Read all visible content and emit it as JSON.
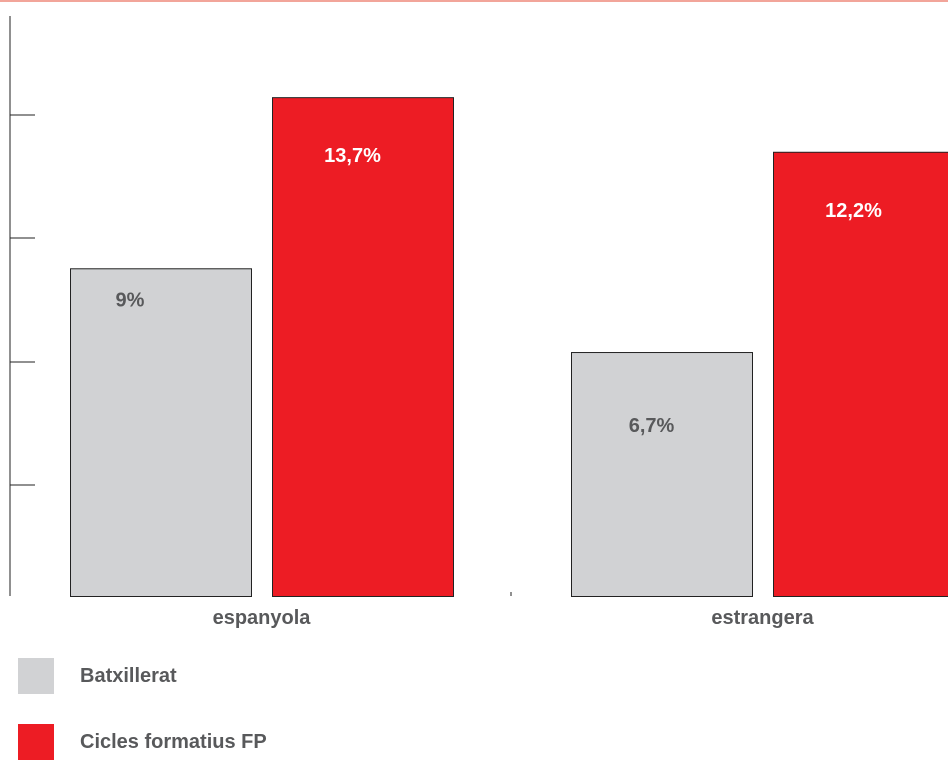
{
  "chart_data": {
    "type": "bar",
    "categories": [
      "espanyola",
      "estrangera"
    ],
    "series": [
      {
        "name": "Batxillerat",
        "values": [
          9,
          6.7
        ],
        "labels": [
          "9%",
          "6,7%"
        ],
        "color": "#d1d2d4",
        "label_color": "#58595b"
      },
      {
        "name": "Cicles formatius FP",
        "values": [
          13.7,
          12.2
        ],
        "labels": [
          "13,7%",
          "12,2%"
        ],
        "color": "#ed1c24",
        "label_color": "#ffffff"
      }
    ],
    "title": "",
    "xlabel": "",
    "ylabel": "",
    "ylim": [
      0,
      15
    ],
    "grid": false,
    "legend_position": "bottom-left"
  },
  "legend": {
    "items": [
      {
        "label": "Batxillerat",
        "color": "#d1d2d4"
      },
      {
        "label": "Cicles formatius FP",
        "color": "#ed1c24"
      }
    ]
  },
  "colors": {
    "accent_rule": "#f2a59a",
    "axis": "#222222",
    "text": "#58595b"
  }
}
